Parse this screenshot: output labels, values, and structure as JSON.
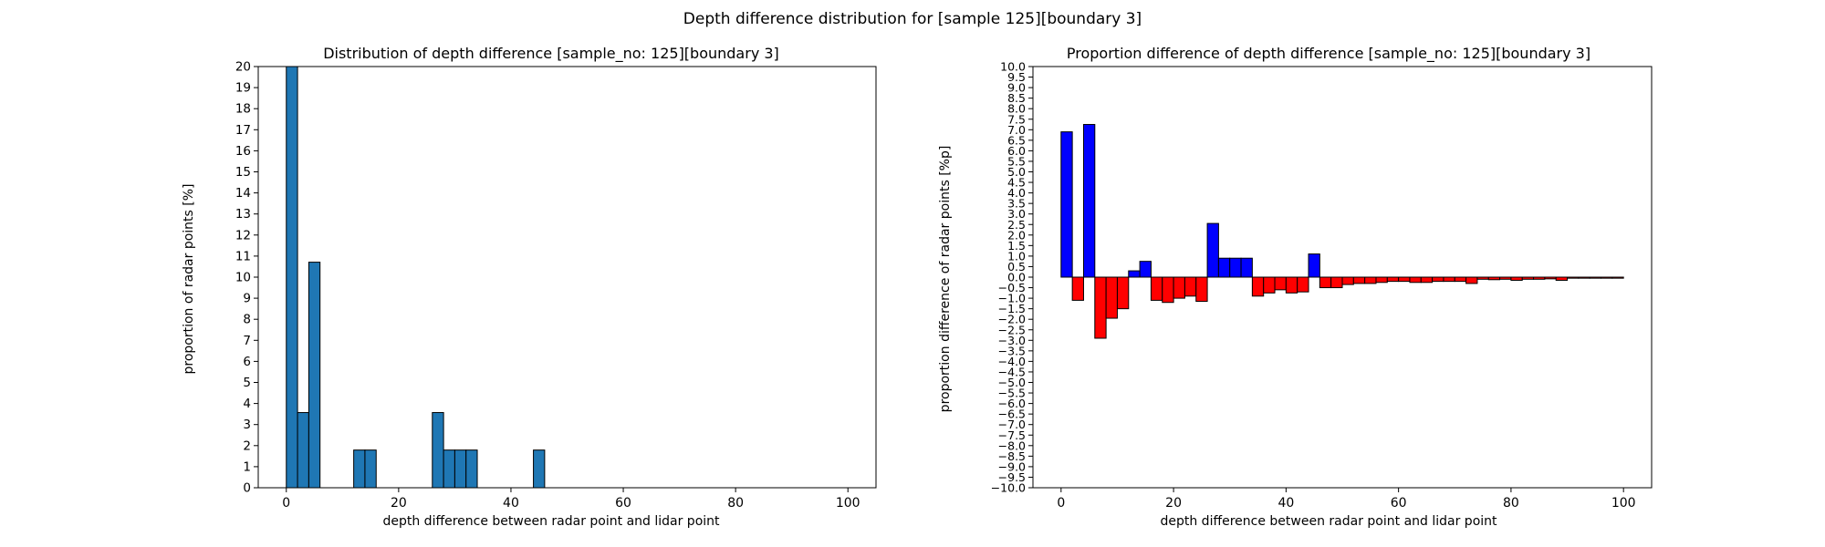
{
  "figure": {
    "suptitle": "Depth difference distribution for [sample 125][boundary 3]"
  },
  "chart_data": [
    {
      "type": "bar",
      "title": "Distribution of depth difference [sample_no: 125][boundary 3]",
      "xlabel": "depth difference between radar point and lidar point",
      "ylabel": "proportion of radar points [%]",
      "xlim": [
        -5,
        105
      ],
      "ylim": [
        0,
        20
      ],
      "xticks": [
        0,
        20,
        40,
        60,
        80,
        100
      ],
      "yticks": [
        0,
        1,
        2,
        3,
        4,
        5,
        6,
        7,
        8,
        9,
        10,
        11,
        12,
        13,
        14,
        15,
        16,
        17,
        18,
        19,
        20
      ],
      "bin_width": 2,
      "bar_color": "#1f77b4",
      "edge_color": "#000000",
      "bars": [
        {
          "x0": 0,
          "value": 20.0
        },
        {
          "x0": 2,
          "value": 3.57
        },
        {
          "x0": 4,
          "value": 10.71
        },
        {
          "x0": 12,
          "value": 1.79
        },
        {
          "x0": 14,
          "value": 1.79
        },
        {
          "x0": 26,
          "value": 3.57
        },
        {
          "x0": 28,
          "value": 1.79
        },
        {
          "x0": 30,
          "value": 1.79
        },
        {
          "x0": 32,
          "value": 1.79
        },
        {
          "x0": 44,
          "value": 1.79
        }
      ]
    },
    {
      "type": "bar",
      "title": "Proportion difference of depth difference [sample_no: 125][boundary 3]",
      "xlabel": "depth difference between radar point and lidar point",
      "ylabel": "proportion difference of radar points [%p]",
      "xlim": [
        -5,
        105
      ],
      "ylim": [
        -10,
        10
      ],
      "xticks": [
        0,
        20,
        40,
        60,
        80,
        100
      ],
      "ytick_step": 0.5,
      "bin_width": 2,
      "positive_color": "#0000ff",
      "negative_color": "#ff0000",
      "edge_color": "#000000",
      "bars": [
        {
          "x0": 0,
          "value": 6.9
        },
        {
          "x0": 2,
          "value": -1.1
        },
        {
          "x0": 4,
          "value": 7.25
        },
        {
          "x0": 6,
          "value": -2.9
        },
        {
          "x0": 8,
          "value": -1.95
        },
        {
          "x0": 10,
          "value": -1.5
        },
        {
          "x0": 12,
          "value": 0.3
        },
        {
          "x0": 14,
          "value": 0.75
        },
        {
          "x0": 16,
          "value": -1.1
        },
        {
          "x0": 18,
          "value": -1.2
        },
        {
          "x0": 20,
          "value": -1.0
        },
        {
          "x0": 22,
          "value": -0.9
        },
        {
          "x0": 24,
          "value": -1.15
        },
        {
          "x0": 26,
          "value": 2.55
        },
        {
          "x0": 28,
          "value": 0.9
        },
        {
          "x0": 30,
          "value": 0.9
        },
        {
          "x0": 32,
          "value": 0.9
        },
        {
          "x0": 34,
          "value": -0.9
        },
        {
          "x0": 36,
          "value": -0.75
        },
        {
          "x0": 38,
          "value": -0.6
        },
        {
          "x0": 40,
          "value": -0.75
        },
        {
          "x0": 42,
          "value": -0.7
        },
        {
          "x0": 44,
          "value": 1.1
        },
        {
          "x0": 46,
          "value": -0.5
        },
        {
          "x0": 48,
          "value": -0.5
        },
        {
          "x0": 50,
          "value": -0.35
        },
        {
          "x0": 52,
          "value": -0.3
        },
        {
          "x0": 54,
          "value": -0.3
        },
        {
          "x0": 56,
          "value": -0.25
        },
        {
          "x0": 58,
          "value": -0.2
        },
        {
          "x0": 60,
          "value": -0.2
        },
        {
          "x0": 62,
          "value": -0.25
        },
        {
          "x0": 64,
          "value": -0.25
        },
        {
          "x0": 66,
          "value": -0.2
        },
        {
          "x0": 68,
          "value": -0.2
        },
        {
          "x0": 70,
          "value": -0.2
        },
        {
          "x0": 72,
          "value": -0.3
        },
        {
          "x0": 74,
          "value": -0.1
        },
        {
          "x0": 76,
          "value": -0.12
        },
        {
          "x0": 78,
          "value": -0.1
        },
        {
          "x0": 80,
          "value": -0.15
        },
        {
          "x0": 82,
          "value": -0.1
        },
        {
          "x0": 84,
          "value": -0.1
        },
        {
          "x0": 86,
          "value": -0.08
        },
        {
          "x0": 88,
          "value": -0.15
        },
        {
          "x0": 90,
          "value": -0.05
        },
        {
          "x0": 92,
          "value": -0.05
        },
        {
          "x0": 94,
          "value": -0.05
        },
        {
          "x0": 96,
          "value": -0.05
        },
        {
          "x0": 98,
          "value": -0.05
        }
      ]
    }
  ]
}
